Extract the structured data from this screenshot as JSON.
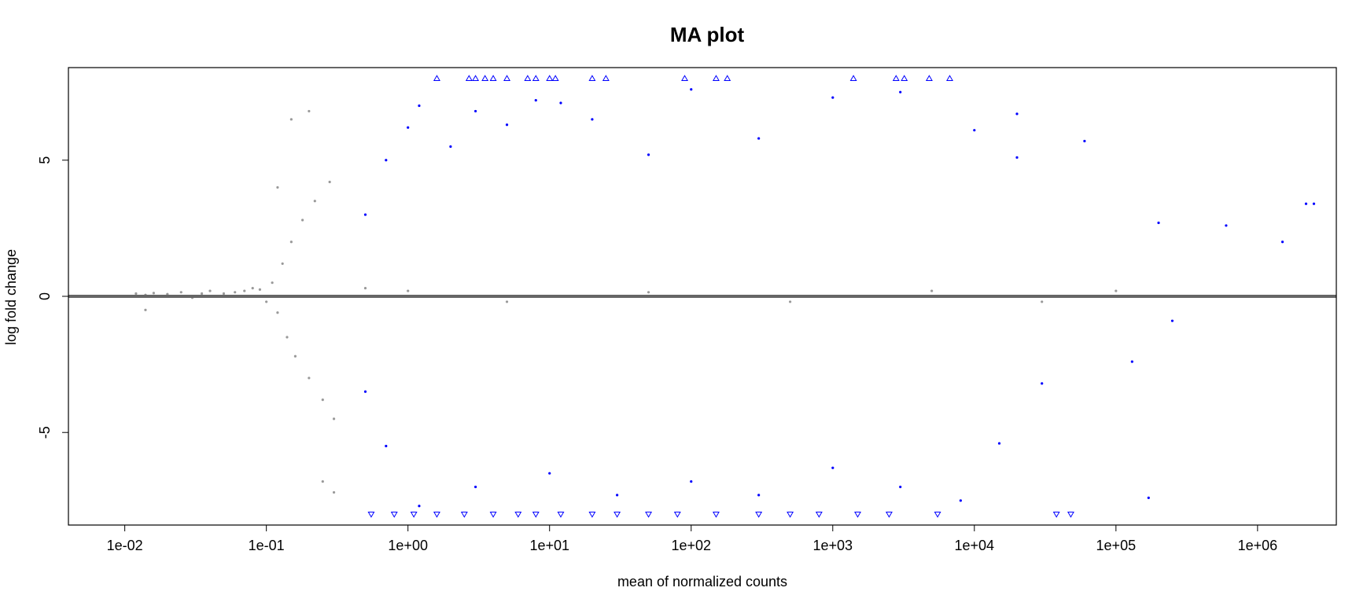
{
  "chart_data": {
    "type": "scatter",
    "title": "MA plot",
    "xlabel": "mean of normalized counts",
    "ylabel": "log fold change",
    "x_scale": "log10",
    "xlim": [
      0.004,
      3600000
    ],
    "ylim": [
      -8.4,
      8.4
    ],
    "x_ticks": [
      0.01,
      0.1,
      1,
      10,
      100,
      1000,
      10000,
      100000,
      1000000
    ],
    "x_tick_labels": [
      "1e-02",
      "1e-01",
      "1e+00",
      "1e+01",
      "1e+02",
      "1e+03",
      "1e+04",
      "1e+05",
      "1e+06"
    ],
    "y_ticks": [
      -5,
      0,
      5
    ],
    "y_tick_labels": [
      "-5",
      "0",
      "5"
    ],
    "reference_line": {
      "y": 0,
      "color": "#666666"
    },
    "colors": {
      "significant": "#0000ff",
      "not_significant": "#999999"
    },
    "clipped_marker_y": {
      "top": 8,
      "bottom": -8
    },
    "grid": false,
    "legend": "none",
    "series": [
      {
        "status": "not-significant",
        "color": "#999999",
        "marker": "dot",
        "points": [
          [
            0.012,
            0.1
          ],
          [
            0.014,
            0.05
          ],
          [
            0.016,
            0.12
          ],
          [
            0.02,
            0.08
          ],
          [
            0.025,
            0.15
          ],
          [
            0.03,
            -0.05
          ],
          [
            0.035,
            0.1
          ],
          [
            0.04,
            0.2
          ],
          [
            0.05,
            0.1
          ],
          [
            0.06,
            0.15
          ],
          [
            0.07,
            0.2
          ],
          [
            0.08,
            0.3
          ],
          [
            0.09,
            0.25
          ],
          [
            0.1,
            -0.2
          ],
          [
            0.11,
            0.5
          ],
          [
            0.12,
            -0.6
          ],
          [
            0.13,
            1.2
          ],
          [
            0.14,
            -1.5
          ],
          [
            0.15,
            2.0
          ],
          [
            0.16,
            -2.2
          ],
          [
            0.18,
            2.8
          ],
          [
            0.2,
            -3.0
          ],
          [
            0.22,
            3.5
          ],
          [
            0.25,
            -3.8
          ],
          [
            0.28,
            4.2
          ],
          [
            0.3,
            -4.5
          ],
          [
            0.12,
            4.0
          ],
          [
            0.15,
            6.5
          ],
          [
            0.2,
            6.8
          ],
          [
            0.25,
            -6.8
          ],
          [
            0.3,
            -7.2
          ],
          [
            0.014,
            -0.5
          ],
          [
            0.5,
            0.3
          ],
          [
            1.0,
            0.2
          ],
          [
            5.0,
            -0.2
          ],
          [
            50,
            0.15
          ],
          [
            500,
            -0.2
          ],
          [
            5000,
            0.2
          ],
          [
            30000,
            -0.2
          ],
          [
            100000,
            0.2
          ]
        ]
      },
      {
        "status": "significant",
        "color": "#0000ff",
        "marker": "dot",
        "points": [
          [
            0.5,
            3.0
          ],
          [
            0.7,
            5.0
          ],
          [
            1.0,
            6.2
          ],
          [
            1.2,
            7.0
          ],
          [
            2,
            5.5
          ],
          [
            3,
            6.8
          ],
          [
            5,
            6.3
          ],
          [
            8,
            7.2
          ],
          [
            12,
            7.1
          ],
          [
            20,
            6.5
          ],
          [
            50,
            5.2
          ],
          [
            100,
            7.6
          ],
          [
            300,
            5.8
          ],
          [
            1000,
            7.3
          ],
          [
            3000,
            7.5
          ],
          [
            10000,
            6.1
          ],
          [
            20000,
            6.7
          ],
          [
            20000,
            5.1
          ],
          [
            60000,
            5.7
          ],
          [
            200000,
            2.7
          ],
          [
            600000,
            2.6
          ],
          [
            1500000,
            2.0
          ],
          [
            2200000,
            3.4
          ],
          [
            2500000,
            3.4
          ],
          [
            0.5,
            -3.5
          ],
          [
            0.7,
            -5.5
          ],
          [
            1.2,
            -7.7
          ],
          [
            3,
            -7.0
          ],
          [
            10,
            -6.5
          ],
          [
            30,
            -7.3
          ],
          [
            100,
            -6.8
          ],
          [
            300,
            -7.3
          ],
          [
            1000,
            -6.3
          ],
          [
            3000,
            -7.0
          ],
          [
            8000,
            -7.5
          ],
          [
            15000,
            -5.4
          ],
          [
            30000,
            -3.2
          ],
          [
            130000,
            -2.4
          ],
          [
            170000,
            -7.4
          ],
          [
            250000,
            -0.9
          ]
        ]
      },
      {
        "status": "clipped",
        "color": "#0000ff",
        "marker": "triangle",
        "points": [
          [
            1.6,
            8
          ],
          [
            2.7,
            8
          ],
          [
            3,
            8
          ],
          [
            3.5,
            8
          ],
          [
            4,
            8
          ],
          [
            5,
            8
          ],
          [
            7,
            8
          ],
          [
            8,
            8
          ],
          [
            10,
            8
          ],
          [
            11,
            8
          ],
          [
            20,
            8
          ],
          [
            25,
            8
          ],
          [
            90,
            8
          ],
          [
            150,
            8
          ],
          [
            180,
            8
          ],
          [
            1400,
            8
          ],
          [
            2800,
            8
          ],
          [
            3200,
            8
          ],
          [
            4800,
            8
          ],
          [
            6700,
            8
          ],
          [
            0.55,
            -8
          ],
          [
            0.8,
            -8
          ],
          [
            1.1,
            -8
          ],
          [
            1.6,
            -8
          ],
          [
            2.5,
            -8
          ],
          [
            4,
            -8
          ],
          [
            6,
            -8
          ],
          [
            8,
            -8
          ],
          [
            12,
            -8
          ],
          [
            20,
            -8
          ],
          [
            30,
            -8
          ],
          [
            50,
            -8
          ],
          [
            80,
            -8
          ],
          [
            150,
            -8
          ],
          [
            300,
            -8
          ],
          [
            500,
            -8
          ],
          [
            800,
            -8
          ],
          [
            1500,
            -8
          ],
          [
            2500,
            -8
          ],
          [
            5500,
            -8
          ],
          [
            38000,
            -8
          ],
          [
            48000,
            -8
          ]
        ]
      }
    ]
  }
}
